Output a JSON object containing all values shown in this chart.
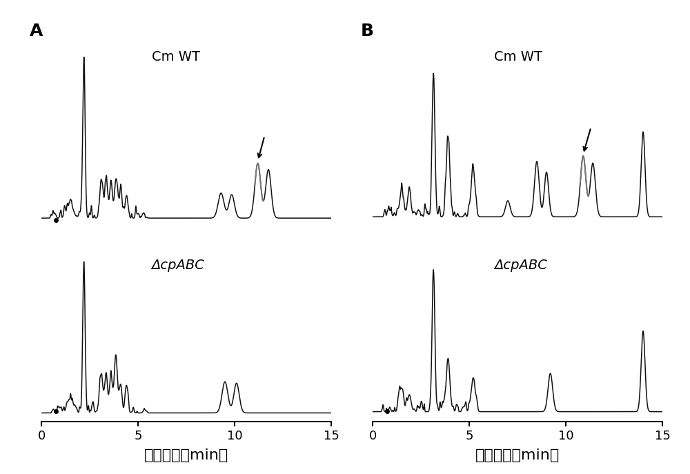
{
  "panel_A_label": "A",
  "panel_B_label": "B",
  "xlabel": "延迟时间（min）",
  "xmin": 0,
  "xmax": 15,
  "xticks": [
    0,
    5,
    10,
    15
  ],
  "label_wt": "Cm WT",
  "label_mutant": "ΔcpABC",
  "bg_color": "#ffffff",
  "line_color": "#111111",
  "highlight_color": "#777777",
  "fontsize_label": 16,
  "fontsize_tick": 13,
  "fontsize_panel": 18,
  "fontsize_annotation": 14
}
